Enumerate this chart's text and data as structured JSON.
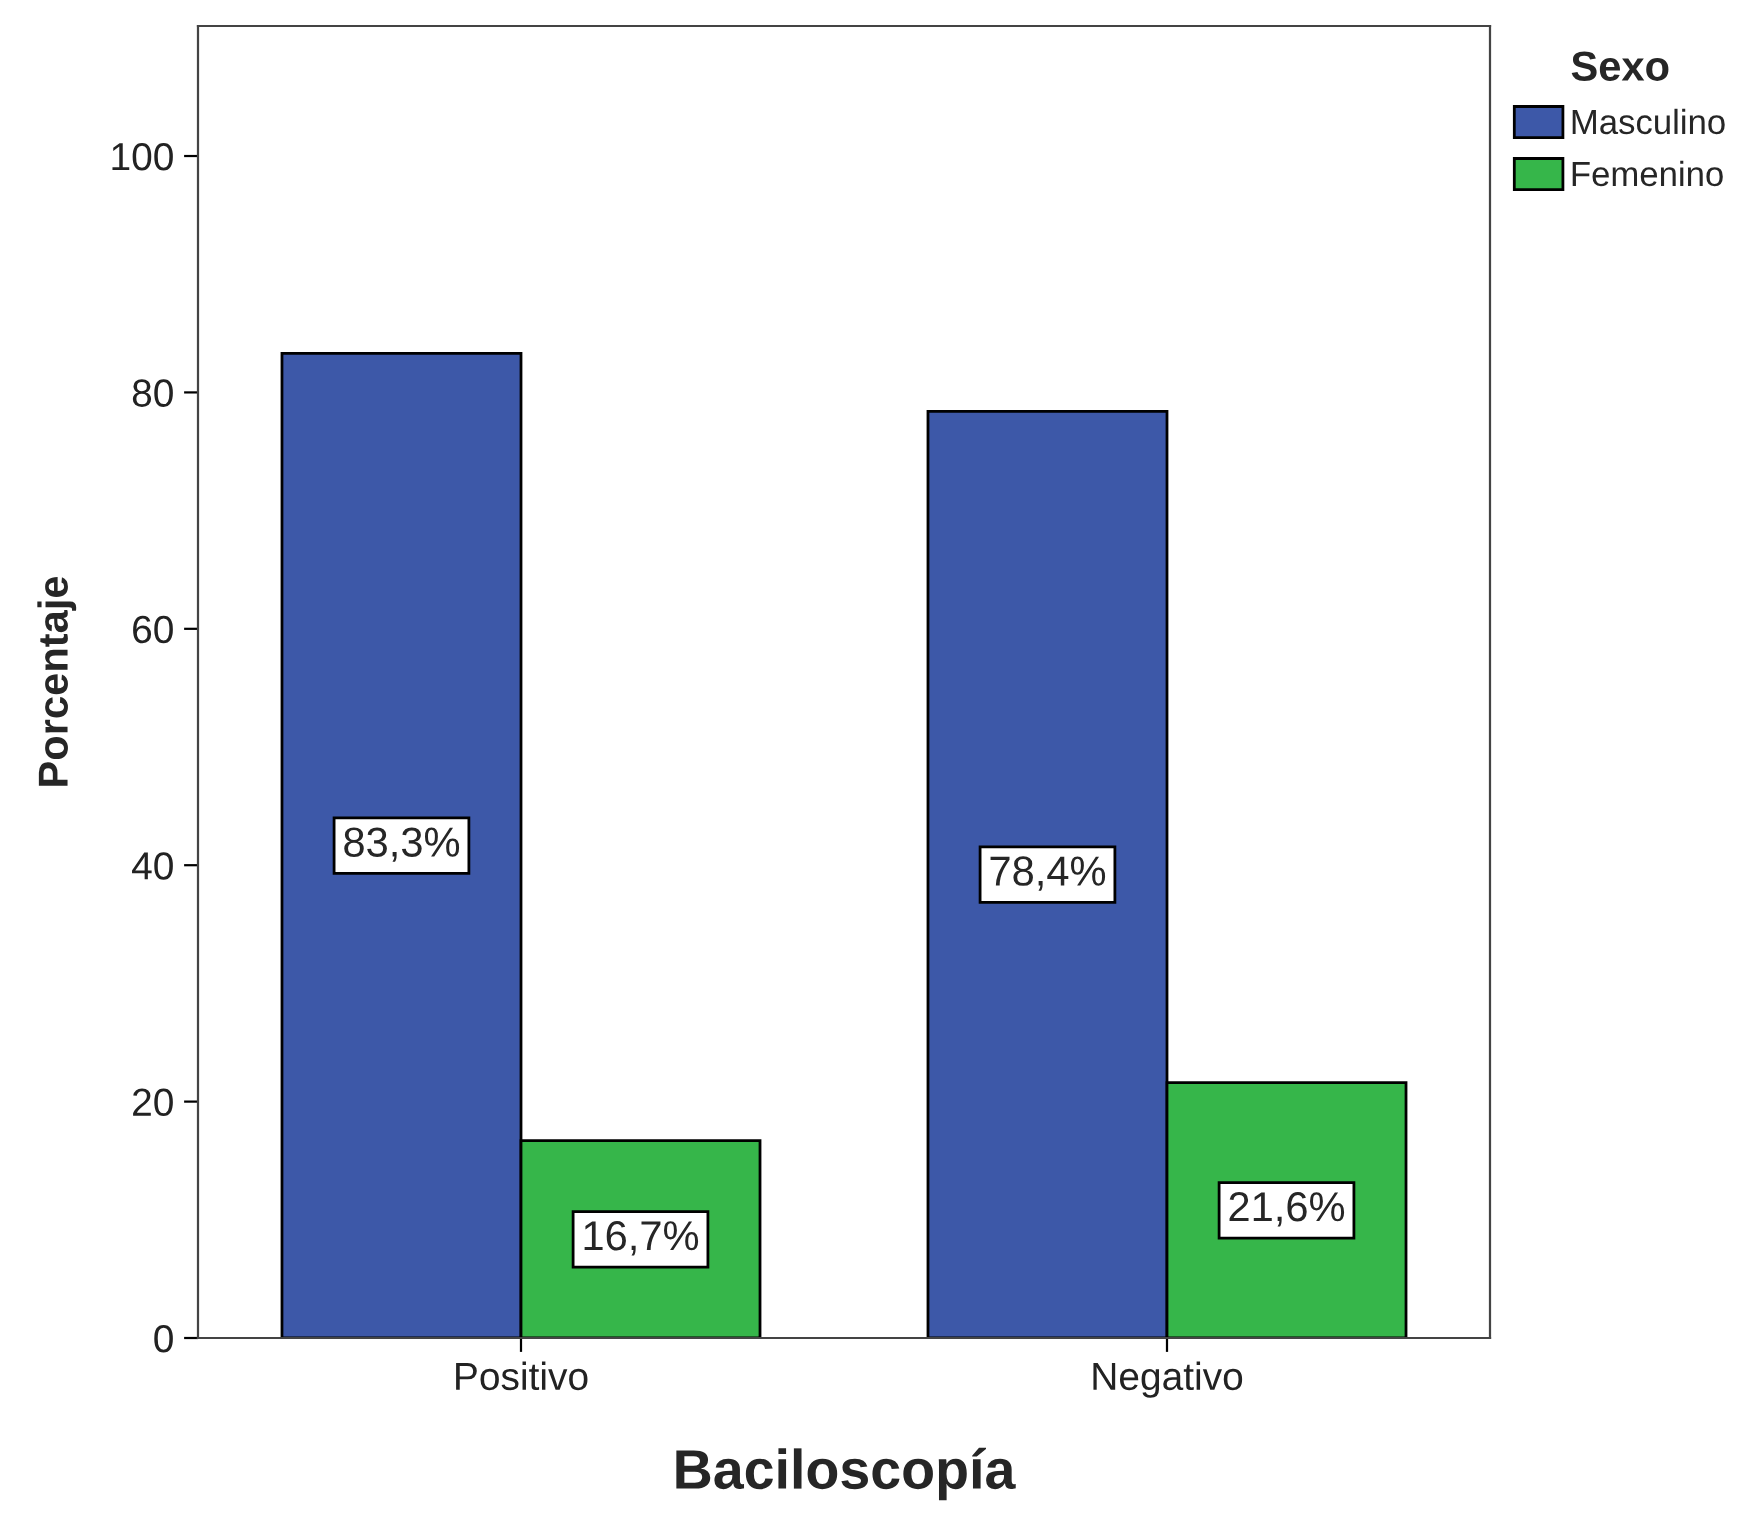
{
  "chart_data": {
    "type": "bar",
    "xlabel": "Baciloscopía",
    "ylabel": "Porcentaje",
    "legend_title": "Sexo",
    "categories": [
      "Positivo",
      "Negativo"
    ],
    "series": [
      {
        "name": "Masculino",
        "color": "#3d58a8",
        "values": [
          83.3,
          78.4
        ],
        "value_labels": [
          "83,3%",
          "78,4%"
        ]
      },
      {
        "name": "Femenino",
        "color": "#36b64a",
        "values": [
          16.7,
          21.6
        ],
        "value_labels": [
          "16,7%",
          "21,6%"
        ]
      }
    ],
    "ylim": [
      0,
      111
    ],
    "yticks": [
      0,
      20,
      40,
      60,
      80,
      100
    ],
    "grid": false,
    "legend": "right"
  }
}
